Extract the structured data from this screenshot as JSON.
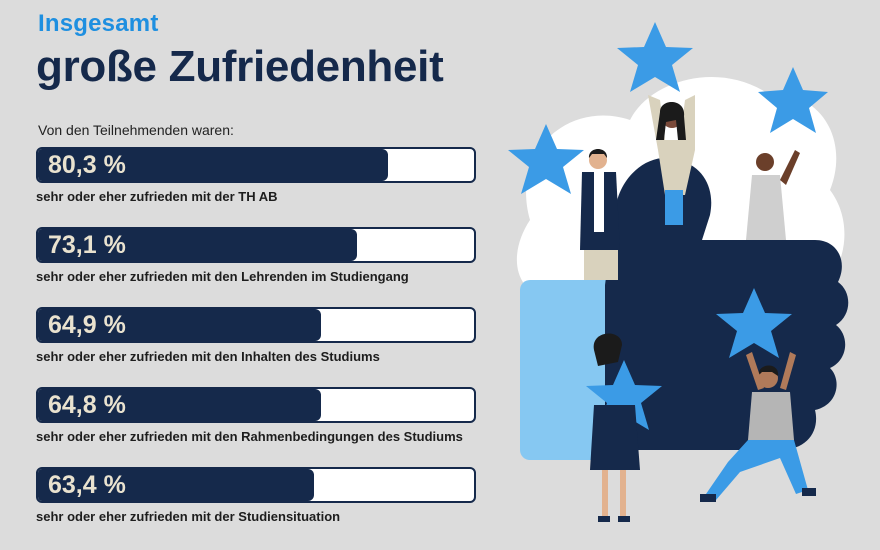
{
  "header": {
    "kicker": "Insgesamt",
    "title": "große Zufriedenheit",
    "intro": "Von den Teilnehmenden waren:"
  },
  "colors": {
    "background": "#dcdcdc",
    "accent_blue": "#1e8fe0",
    "navy": "#15294b",
    "star_blue": "#3b9be6",
    "light_blue": "#86c8f2",
    "value_text": "#e9e2cf"
  },
  "chart_data": {
    "type": "bar",
    "orientation": "horizontal",
    "xlim": [
      0,
      100
    ],
    "categories": [
      "sehr oder eher zufrieden mit der TH AB",
      "sehr oder eher zufrieden mit den Lehrenden im Studiengang",
      "sehr oder eher zufrieden mit den Inhalten des Studiums",
      "sehr oder eher zufrieden mit den Rahmenbedingungen des Studiums",
      "sehr oder eher zufrieden mit der Studiensituation"
    ],
    "values": [
      80.3,
      73.1,
      64.9,
      64.8,
      63.4
    ],
    "value_labels": [
      "80,3 %",
      "73,1 %",
      "64,9 %",
      "64,8 %",
      "63,4 %"
    ]
  },
  "illustration": {
    "icon": "thumbs-up-with-people-holding-stars-icon"
  }
}
